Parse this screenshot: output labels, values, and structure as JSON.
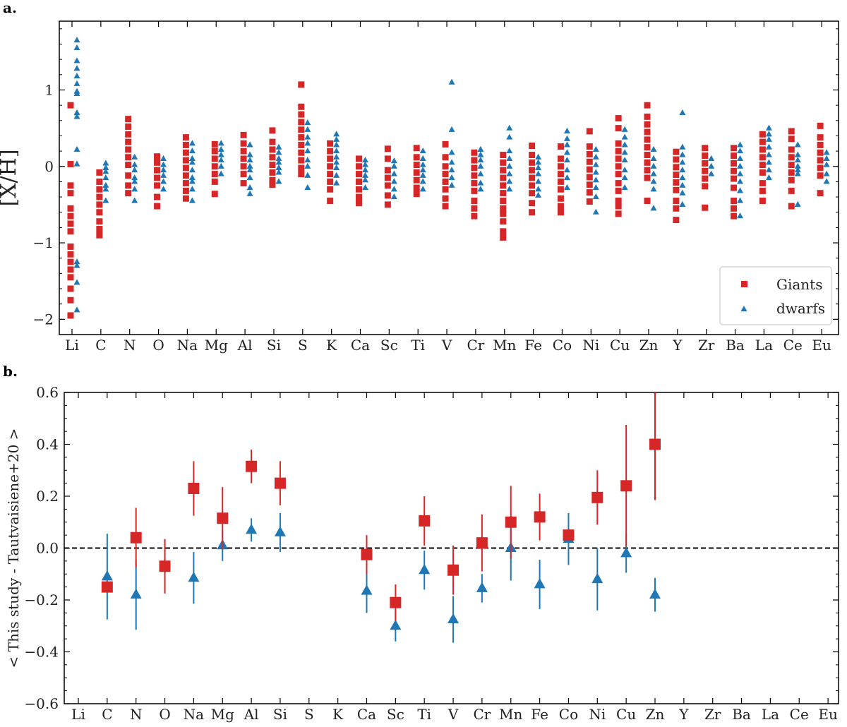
{
  "chart_data": [
    {
      "panel": "a.",
      "type": "scatter",
      "title": "",
      "xlabel": "",
      "ylabel": "[X/H]",
      "categories": [
        "Li",
        "C",
        "N",
        "O",
        "Na",
        "Mg",
        "Al",
        "Si",
        "S",
        "K",
        "Ca",
        "Sc",
        "Ti",
        "V",
        "Cr",
        "Mn",
        "Fe",
        "Co",
        "Ni",
        "Cu",
        "Zn",
        "Y",
        "Zr",
        "Ba",
        "La",
        "Ce",
        "Eu"
      ],
      "ylim": [
        -2.2,
        1.9
      ],
      "yticks": [
        -2,
        -1,
        0,
        1
      ],
      "ytick_labels": [
        "−2",
        "−1",
        "0",
        "1"
      ],
      "legend": {
        "position": "bottom-right",
        "entries": [
          "Giants",
          "dwarfs"
        ]
      },
      "series": [
        {
          "name": "Giants",
          "marker": "square",
          "color": "#d62728",
          "values": [
            [
              0.8,
              0.03,
              -0.25,
              -0.35,
              -0.55,
              -0.65,
              -0.75,
              -0.85,
              -1.05,
              -1.15,
              -1.25,
              -1.35,
              -1.45,
              -1.6,
              -1.75,
              -1.95
            ],
            [
              -0.08,
              -0.2,
              -0.3,
              -0.4,
              -0.5,
              -0.6,
              -0.72,
              -0.82,
              -0.9
            ],
            [
              0.62,
              0.52,
              0.42,
              0.32,
              0.22,
              0.12,
              0.02,
              -0.12,
              -0.25,
              -0.35
            ],
            [
              0.13,
              0.05,
              -0.05,
              -0.15,
              -0.25,
              -0.4,
              -0.52
            ],
            [
              0.38,
              0.28,
              0.18,
              0.08,
              -0.02,
              -0.12,
              -0.22,
              -0.32,
              -0.42
            ],
            [
              0.29,
              0.2,
              0.1,
              0.0,
              -0.1,
              -0.2,
              -0.36
            ],
            [
              0.41,
              0.3,
              0.2,
              0.1,
              0.0,
              -0.1,
              -0.22
            ],
            [
              0.47,
              0.32,
              0.22,
              0.12,
              0.02,
              -0.08,
              -0.18,
              -0.24
            ],
            [
              1.07,
              0.78,
              0.68,
              0.58,
              0.48,
              0.38,
              0.28,
              0.18,
              0.08,
              -0.02,
              -0.1
            ],
            [
              0.3,
              0.2,
              0.1,
              0.0,
              -0.1,
              -0.2,
              -0.3,
              -0.45
            ],
            [
              0.1,
              0.0,
              -0.1,
              -0.2,
              -0.3,
              -0.4,
              -0.48
            ],
            [
              0.23,
              0.1,
              -0.05,
              -0.15,
              -0.25,
              -0.38,
              -0.5
            ],
            [
              0.24,
              0.12,
              0.02,
              -0.08,
              -0.18,
              -0.28,
              -0.36
            ],
            [
              0.29,
              0.12,
              0.0,
              -0.1,
              -0.2,
              -0.3,
              -0.42,
              -0.52
            ],
            [
              0.18,
              0.08,
              -0.02,
              -0.12,
              -0.22,
              -0.32,
              -0.45,
              -0.55,
              -0.65
            ],
            [
              0.15,
              0.05,
              -0.05,
              -0.15,
              -0.25,
              -0.35,
              -0.45,
              -0.55,
              -0.62,
              -0.72,
              -0.85,
              -0.93
            ],
            [
              0.27,
              0.15,
              0.05,
              -0.05,
              -0.15,
              -0.25,
              -0.35,
              -0.48,
              -0.6
            ],
            [
              0.26,
              0.1,
              0.0,
              -0.1,
              -0.2,
              -0.3,
              -0.42,
              -0.52,
              -0.6
            ],
            [
              0.46,
              0.26,
              0.16,
              0.06,
              -0.04,
              -0.14,
              -0.24,
              -0.34,
              -0.46
            ],
            [
              0.63,
              0.5,
              0.3,
              0.2,
              0.1,
              0.0,
              -0.1,
              -0.22,
              -0.32,
              -0.45,
              -0.52,
              -0.62
            ],
            [
              0.8,
              0.65,
              0.55,
              0.45,
              0.35,
              0.25,
              0.15,
              0.05,
              -0.05,
              -0.15,
              -0.45
            ],
            [
              0.19,
              0.09,
              -0.01,
              -0.11,
              -0.21,
              -0.31,
              -0.45,
              -0.55,
              -0.7
            ],
            [
              0.24,
              0.14,
              0.04,
              -0.06,
              -0.16,
              -0.26,
              -0.54
            ],
            [
              0.24,
              0.14,
              0.04,
              -0.06,
              -0.16,
              -0.28,
              -0.45,
              -0.55,
              -0.65
            ],
            [
              0.42,
              0.32,
              0.22,
              0.12,
              0.02,
              -0.08,
              -0.22,
              -0.32,
              -0.45
            ],
            [
              0.46,
              0.36,
              0.22,
              0.12,
              0.02,
              -0.08,
              -0.18,
              -0.32,
              -0.52
            ],
            [
              0.53,
              0.38,
              0.28,
              0.18,
              0.08,
              -0.02,
              -0.12,
              -0.35
            ]
          ]
        },
        {
          "name": "dwarfs",
          "marker": "triangle",
          "color": "#1f77b4",
          "values": [
            [
              1.65,
              1.55,
              1.38,
              1.28,
              1.18,
              1.08,
              0.98,
              0.95,
              0.7,
              0.65,
              0.22,
              0.03,
              -1.25,
              -1.3,
              -1.52,
              -1.88
            ],
            [
              0.04,
              -0.02,
              -0.07,
              -0.15,
              -0.25,
              -0.3,
              -0.45
            ],
            [
              0.12,
              0.02,
              -0.05,
              -0.15,
              -0.2,
              -0.3,
              -0.45
            ],
            [
              0.1,
              0.02,
              -0.05,
              -0.12,
              -0.2,
              -0.3
            ],
            [
              0.3,
              0.2,
              0.1,
              0.05,
              -0.05,
              -0.15,
              -0.2,
              -0.3,
              -0.45
            ],
            [
              0.3,
              0.22,
              0.15,
              0.08,
              0.0,
              -0.1
            ],
            [
              0.28,
              0.15,
              0.08,
              0.0,
              -0.05,
              -0.15,
              -0.28,
              -0.36
            ],
            [
              0.25,
              0.18,
              0.1,
              0.05,
              -0.02,
              -0.08,
              -0.2
            ],
            [
              0.57,
              0.48,
              0.38,
              0.3,
              0.2,
              0.08,
              0.0,
              -0.12,
              -0.28
            ],
            [
              0.42,
              0.35,
              0.28,
              0.2,
              0.12,
              0.05,
              -0.02,
              -0.12,
              -0.22
            ],
            [
              0.08,
              0.02,
              -0.05,
              -0.12,
              -0.18,
              -0.28
            ],
            [
              0.07,
              0.0,
              -0.1,
              -0.2,
              -0.3,
              -0.4
            ],
            [
              0.2,
              0.1,
              0.02,
              -0.05,
              -0.12,
              -0.2,
              -0.3
            ],
            [
              1.1,
              0.48,
              0.18,
              0.05,
              -0.05,
              -0.15,
              -0.25
            ],
            [
              0.22,
              0.15,
              0.08,
              0.0,
              -0.1,
              -0.22,
              -0.3
            ],
            [
              0.5,
              0.38,
              0.2,
              0.1,
              0.0,
              -0.1,
              -0.2,
              -0.3
            ],
            [
              0.12,
              0.05,
              -0.02,
              -0.1,
              -0.2,
              -0.3,
              -0.38
            ],
            [
              0.46,
              0.36,
              0.28,
              0.18,
              0.08,
              -0.05,
              -0.15,
              -0.28
            ],
            [
              0.22,
              0.12,
              0.02,
              -0.08,
              -0.18,
              -0.28,
              -0.4,
              -0.6
            ],
            [
              0.48,
              0.38,
              0.28,
              0.18,
              0.08,
              -0.05,
              -0.15,
              -0.28
            ],
            [
              0.22,
              0.1,
              0.0,
              -0.1,
              -0.2,
              -0.3,
              -0.55
            ],
            [
              0.7,
              0.25,
              0.15,
              0.05,
              -0.05,
              -0.15,
              -0.25,
              -0.35,
              -0.5
            ],
            [
              0.1,
              0.0,
              -0.1
            ],
            [
              0.28,
              0.2,
              0.1,
              0.0,
              -0.1,
              -0.2,
              -0.32,
              -0.45,
              -0.65
            ],
            [
              0.5,
              0.42,
              0.35,
              0.25,
              0.15,
              0.05,
              -0.05,
              -0.15
            ],
            [
              0.28,
              0.15,
              0.08,
              0.0,
              -0.05,
              -0.1,
              -0.5
            ],
            [
              0.18,
              0.1,
              0.02,
              -0.1,
              -0.2
            ]
          ]
        }
      ]
    },
    {
      "panel": "b.",
      "type": "scatter",
      "title": "",
      "xlabel": "",
      "ylabel": "< This study - Tautvaisiene+20 >",
      "categories": [
        "Li",
        "C",
        "N",
        "O",
        "Na",
        "Mg",
        "Al",
        "Si",
        "S",
        "K",
        "Ca",
        "Sc",
        "Ti",
        "V",
        "Cr",
        "Mn",
        "Fe",
        "Co",
        "Ni",
        "Cu",
        "Zn",
        "Y",
        "Zr",
        "Ba",
        "La",
        "Ce",
        "Eu"
      ],
      "ylim": [
        -0.6,
        0.6
      ],
      "yticks": [
        -0.6,
        -0.4,
        -0.2,
        0.0,
        0.2,
        0.4,
        0.6
      ],
      "ytick_labels": [
        "−0.6",
        "−0.4",
        "−0.2",
        "0.0",
        "0.2",
        "0.4",
        "0.6"
      ],
      "reference_line": 0.0,
      "series": [
        {
          "name": "Giants",
          "marker": "square",
          "color": "#d62728",
          "points": [
            {
              "cat": "C",
              "y": -0.15,
              "err": 0.0
            },
            {
              "cat": "N",
              "y": 0.04,
              "err": 0.115
            },
            {
              "cat": "O",
              "y": -0.07,
              "err": 0.105
            },
            {
              "cat": "Na",
              "y": 0.23,
              "err": 0.105
            },
            {
              "cat": "Mg",
              "y": 0.115,
              "err": 0.12
            },
            {
              "cat": "Al",
              "y": 0.315,
              "err": 0.065
            },
            {
              "cat": "Si",
              "y": 0.25,
              "err": 0.085
            },
            {
              "cat": "Ca",
              "y": -0.025,
              "err": 0.075
            },
            {
              "cat": "Sc",
              "y": -0.21,
              "err": 0.07
            },
            {
              "cat": "Ti",
              "y": 0.105,
              "err": 0.095
            },
            {
              "cat": "V",
              "y": -0.085,
              "err": 0.095
            },
            {
              "cat": "Cr",
              "y": 0.02,
              "err": 0.11
            },
            {
              "cat": "Mn",
              "y": 0.1,
              "err": 0.14
            },
            {
              "cat": "Fe",
              "y": 0.12,
              "err": 0.09
            },
            {
              "cat": "Co",
              "y": 0.05,
              "err": 0.0
            },
            {
              "cat": "Ni",
              "y": 0.195,
              "err": 0.105
            },
            {
              "cat": "Cu",
              "y": 0.24,
              "err": 0.235
            },
            {
              "cat": "Zn",
              "y": 0.4,
              "err": 0.215
            }
          ]
        },
        {
          "name": "dwarfs",
          "marker": "triangle",
          "color": "#1f77b4",
          "points": [
            {
              "cat": "C",
              "y": -0.11,
              "err": 0.165
            },
            {
              "cat": "N",
              "y": -0.18,
              "err": 0.135
            },
            {
              "cat": "O",
              "y": -0.07,
              "err": 0.03
            },
            {
              "cat": "Na",
              "y": -0.115,
              "err": 0.1
            },
            {
              "cat": "Mg",
              "y": 0.01,
              "err": 0.06
            },
            {
              "cat": "Al",
              "y": 0.07,
              "err": 0.045
            },
            {
              "cat": "Si",
              "y": 0.06,
              "err": 0.075
            },
            {
              "cat": "Ca",
              "y": -0.165,
              "err": 0.085
            },
            {
              "cat": "Sc",
              "y": -0.3,
              "err": 0.06
            },
            {
              "cat": "Ti",
              "y": -0.085,
              "err": 0.075
            },
            {
              "cat": "V",
              "y": -0.275,
              "err": 0.09
            },
            {
              "cat": "Cr",
              "y": -0.155,
              "err": 0.055
            },
            {
              "cat": "Mn",
              "y": 0.0,
              "err": 0.125
            },
            {
              "cat": "Fe",
              "y": -0.14,
              "err": 0.095
            },
            {
              "cat": "Co",
              "y": 0.035,
              "err": 0.1
            },
            {
              "cat": "Ni",
              "y": -0.12,
              "err": 0.12
            },
            {
              "cat": "Cu",
              "y": -0.02,
              "err": 0.075
            },
            {
              "cat": "Zn",
              "y": -0.18,
              "err": 0.065
            }
          ]
        }
      ]
    }
  ]
}
